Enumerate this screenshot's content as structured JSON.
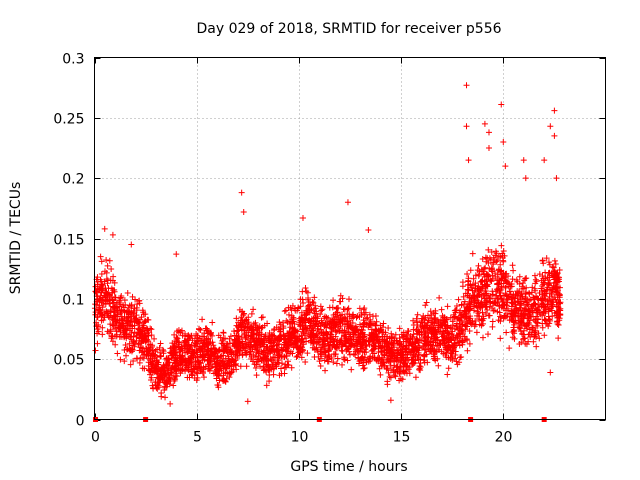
{
  "chart_data": {
    "type": "scatter",
    "title": "Day 029 of 2018, SRMTID for receiver p556",
    "xlabel": "GPS time / hours",
    "ylabel": "SRMTID / TECUs",
    "xlim": [
      0,
      25
    ],
    "ylim": [
      0,
      0.3
    ],
    "x_ticks": [
      0,
      5,
      10,
      15,
      20
    ],
    "x_tick_labels": [
      "0",
      "5",
      "10",
      "15",
      "20"
    ],
    "y_ticks": [
      0,
      0.05,
      0.1,
      0.15,
      0.2,
      0.25,
      0.3
    ],
    "y_tick_labels": [
      "0",
      "0.05",
      "0.1",
      "0.15",
      "0.2",
      "0.25",
      "0.3"
    ],
    "grid": true,
    "marker": "+",
    "color": "#ff0000",
    "gap_markers_x": [
      0.05,
      2.5,
      11.0,
      18.4,
      22.0
    ],
    "segments": [
      {
        "x": 0.0,
        "y": 0.085
      },
      {
        "x": 0.5,
        "y": 0.105
      },
      {
        "x": 1.0,
        "y": 0.09
      },
      {
        "x": 1.5,
        "y": 0.075
      },
      {
        "x": 2.0,
        "y": 0.08
      },
      {
        "x": 2.5,
        "y": 0.065
      },
      {
        "x": 3.0,
        "y": 0.04
      },
      {
        "x": 3.5,
        "y": 0.038
      },
      {
        "x": 4.0,
        "y": 0.05
      },
      {
        "x": 4.5,
        "y": 0.055
      },
      {
        "x": 5.0,
        "y": 0.05
      },
      {
        "x": 5.5,
        "y": 0.06
      },
      {
        "x": 6.0,
        "y": 0.048
      },
      {
        "x": 6.5,
        "y": 0.05
      },
      {
        "x": 7.0,
        "y": 0.065
      },
      {
        "x": 7.5,
        "y": 0.07
      },
      {
        "x": 8.0,
        "y": 0.062
      },
      {
        "x": 8.5,
        "y": 0.055
      },
      {
        "x": 9.0,
        "y": 0.06
      },
      {
        "x": 9.5,
        "y": 0.065
      },
      {
        "x": 10.0,
        "y": 0.075
      },
      {
        "x": 10.5,
        "y": 0.085
      },
      {
        "x": 11.0,
        "y": 0.07
      },
      {
        "x": 11.5,
        "y": 0.065
      },
      {
        "x": 12.0,
        "y": 0.075
      },
      {
        "x": 12.5,
        "y": 0.07
      },
      {
        "x": 13.0,
        "y": 0.065
      },
      {
        "x": 13.5,
        "y": 0.07
      },
      {
        "x": 14.0,
        "y": 0.06
      },
      {
        "x": 14.5,
        "y": 0.055
      },
      {
        "x": 15.0,
        "y": 0.05
      },
      {
        "x": 15.5,
        "y": 0.06
      },
      {
        "x": 16.0,
        "y": 0.065
      },
      {
        "x": 16.5,
        "y": 0.07
      },
      {
        "x": 17.0,
        "y": 0.07
      },
      {
        "x": 17.5,
        "y": 0.065
      },
      {
        "x": 18.0,
        "y": 0.08
      },
      {
        "x": 18.5,
        "y": 0.1
      },
      {
        "x": 19.0,
        "y": 0.105
      },
      {
        "x": 19.5,
        "y": 0.11
      },
      {
        "x": 20.0,
        "y": 0.11
      },
      {
        "x": 20.5,
        "y": 0.09
      },
      {
        "x": 21.0,
        "y": 0.09
      },
      {
        "x": 21.5,
        "y": 0.085
      },
      {
        "x": 22.0,
        "y": 0.1
      },
      {
        "x": 22.5,
        "y": 0.11
      },
      {
        "x": 22.8,
        "y": 0.1
      }
    ],
    "outliers": [
      {
        "x": 0.5,
        "y": 0.158
      },
      {
        "x": 0.9,
        "y": 0.153
      },
      {
        "x": 1.8,
        "y": 0.145
      },
      {
        "x": 7.2,
        "y": 0.188
      },
      {
        "x": 7.3,
        "y": 0.172
      },
      {
        "x": 10.2,
        "y": 0.167
      },
      {
        "x": 12.4,
        "y": 0.18
      },
      {
        "x": 13.4,
        "y": 0.157
      },
      {
        "x": 18.2,
        "y": 0.277
      },
      {
        "x": 18.2,
        "y": 0.243
      },
      {
        "x": 18.3,
        "y": 0.215
      },
      {
        "x": 19.1,
        "y": 0.245
      },
      {
        "x": 19.3,
        "y": 0.238
      },
      {
        "x": 19.3,
        "y": 0.225
      },
      {
        "x": 19.9,
        "y": 0.261
      },
      {
        "x": 20.0,
        "y": 0.23
      },
      {
        "x": 20.1,
        "y": 0.21
      },
      {
        "x": 21.1,
        "y": 0.2
      },
      {
        "x": 21.0,
        "y": 0.215
      },
      {
        "x": 22.0,
        "y": 0.215
      },
      {
        "x": 22.3,
        "y": 0.243
      },
      {
        "x": 22.5,
        "y": 0.256
      },
      {
        "x": 22.5,
        "y": 0.235
      },
      {
        "x": 22.6,
        "y": 0.2
      },
      {
        "x": 7.5,
        "y": 0.015
      },
      {
        "x": 3.7,
        "y": 0.013
      },
      {
        "x": 14.5,
        "y": 0.016
      },
      {
        "x": 22.3,
        "y": 0.039
      },
      {
        "x": 0.3,
        "y": 0.135
      },
      {
        "x": 4.0,
        "y": 0.137
      }
    ]
  }
}
